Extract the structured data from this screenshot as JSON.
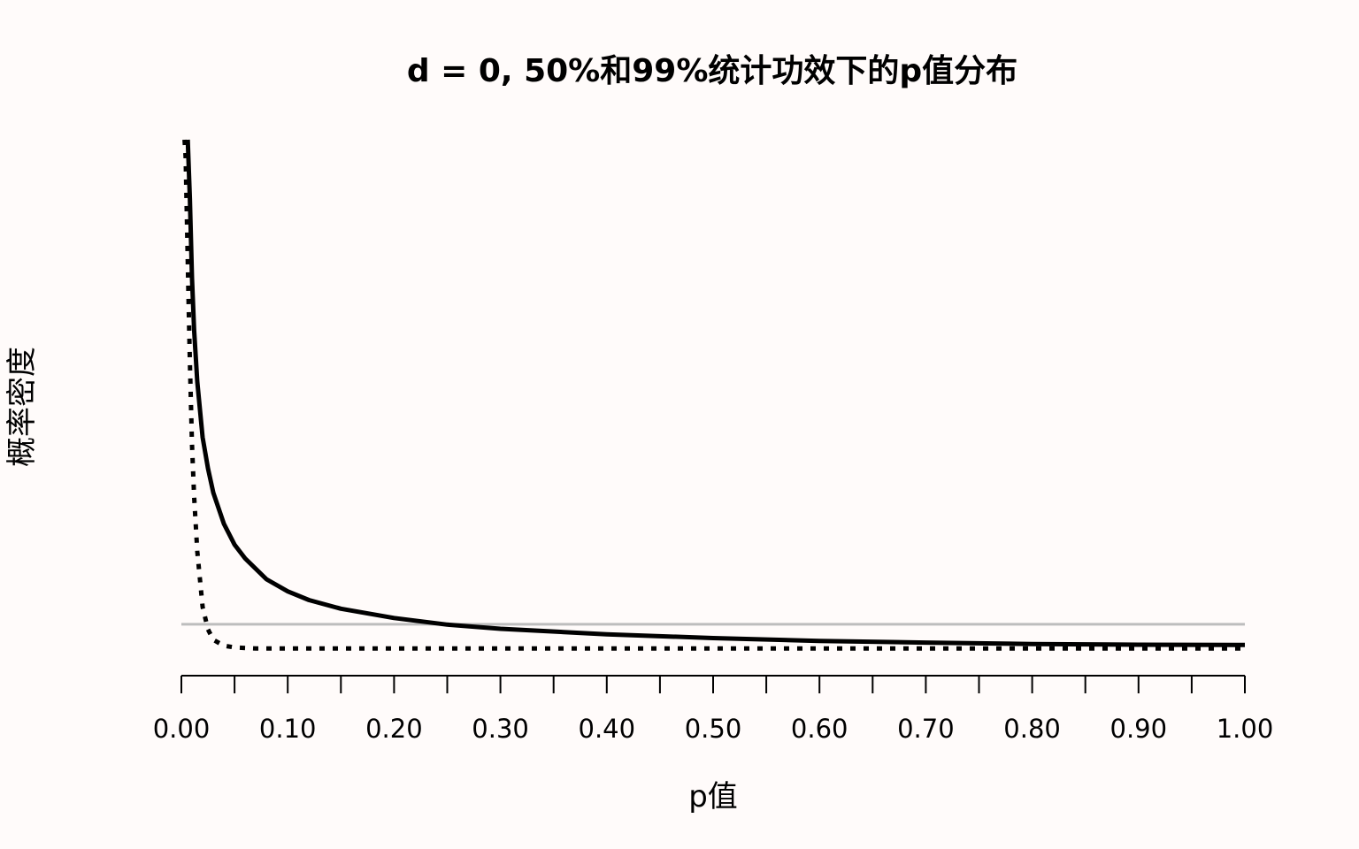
{
  "chart_data": {
    "type": "line",
    "title": "d = 0, 50%和99%统计功效下的p值分布",
    "xlabel": "p值",
    "ylabel": "概率密度",
    "xlim": [
      0,
      1
    ],
    "ylim": [
      0,
      15
    ],
    "grid": false,
    "x_ticks": [
      0,
      0.05,
      0.1,
      0.15,
      0.2,
      0.25,
      0.3,
      0.35,
      0.4,
      0.45,
      0.5,
      0.55,
      0.6,
      0.65,
      0.7,
      0.75,
      0.8,
      0.85,
      0.9,
      0.95,
      1.0
    ],
    "x_tick_labels": [
      "0.00",
      "0.10",
      "0.20",
      "0.30",
      "0.40",
      "0.50",
      "0.60",
      "0.70",
      "0.80",
      "0.90",
      "1.00"
    ],
    "x_tick_label_values": [
      0,
      0.1,
      0.2,
      0.3,
      0.4,
      0.5,
      0.6,
      0.7,
      0.8,
      0.9,
      1.0
    ],
    "reference_line": {
      "y": 1.0,
      "color": "#bdbdbd"
    },
    "series": [
      {
        "style": "solid",
        "color": "#000000",
        "x": [
          0.006,
          0.008,
          0.01,
          0.012,
          0.015,
          0.02,
          0.025,
          0.03,
          0.04,
          0.05,
          0.06,
          0.08,
          0.1,
          0.12,
          0.15,
          0.2,
          0.25,
          0.3,
          0.4,
          0.5,
          0.6,
          0.7,
          0.8,
          0.9,
          1.0
        ],
        "y": [
          15.0,
          13.3,
          11.0,
          9.5,
          8.0,
          6.4,
          5.5,
          4.8,
          3.9,
          3.3,
          2.9,
          2.3,
          1.95,
          1.7,
          1.45,
          1.18,
          0.99,
          0.87,
          0.71,
          0.6,
          0.52,
          0.47,
          0.43,
          0.41,
          0.4
        ]
      },
      {
        "style": "dotted",
        "color": "#000000",
        "x": [
          0.003,
          0.004,
          0.005,
          0.006,
          0.007,
          0.008,
          0.01,
          0.012,
          0.015,
          0.02,
          0.025,
          0.03,
          0.04,
          0.05,
          0.07,
          0.1,
          0.2,
          0.4,
          0.6,
          0.8,
          1.0
        ],
        "y": [
          15.0,
          14.5,
          13.0,
          11.5,
          10.0,
          8.6,
          6.2,
          4.7,
          3.1,
          1.5,
          0.85,
          0.55,
          0.38,
          0.33,
          0.3,
          0.3,
          0.3,
          0.3,
          0.3,
          0.3,
          0.3
        ]
      }
    ]
  }
}
